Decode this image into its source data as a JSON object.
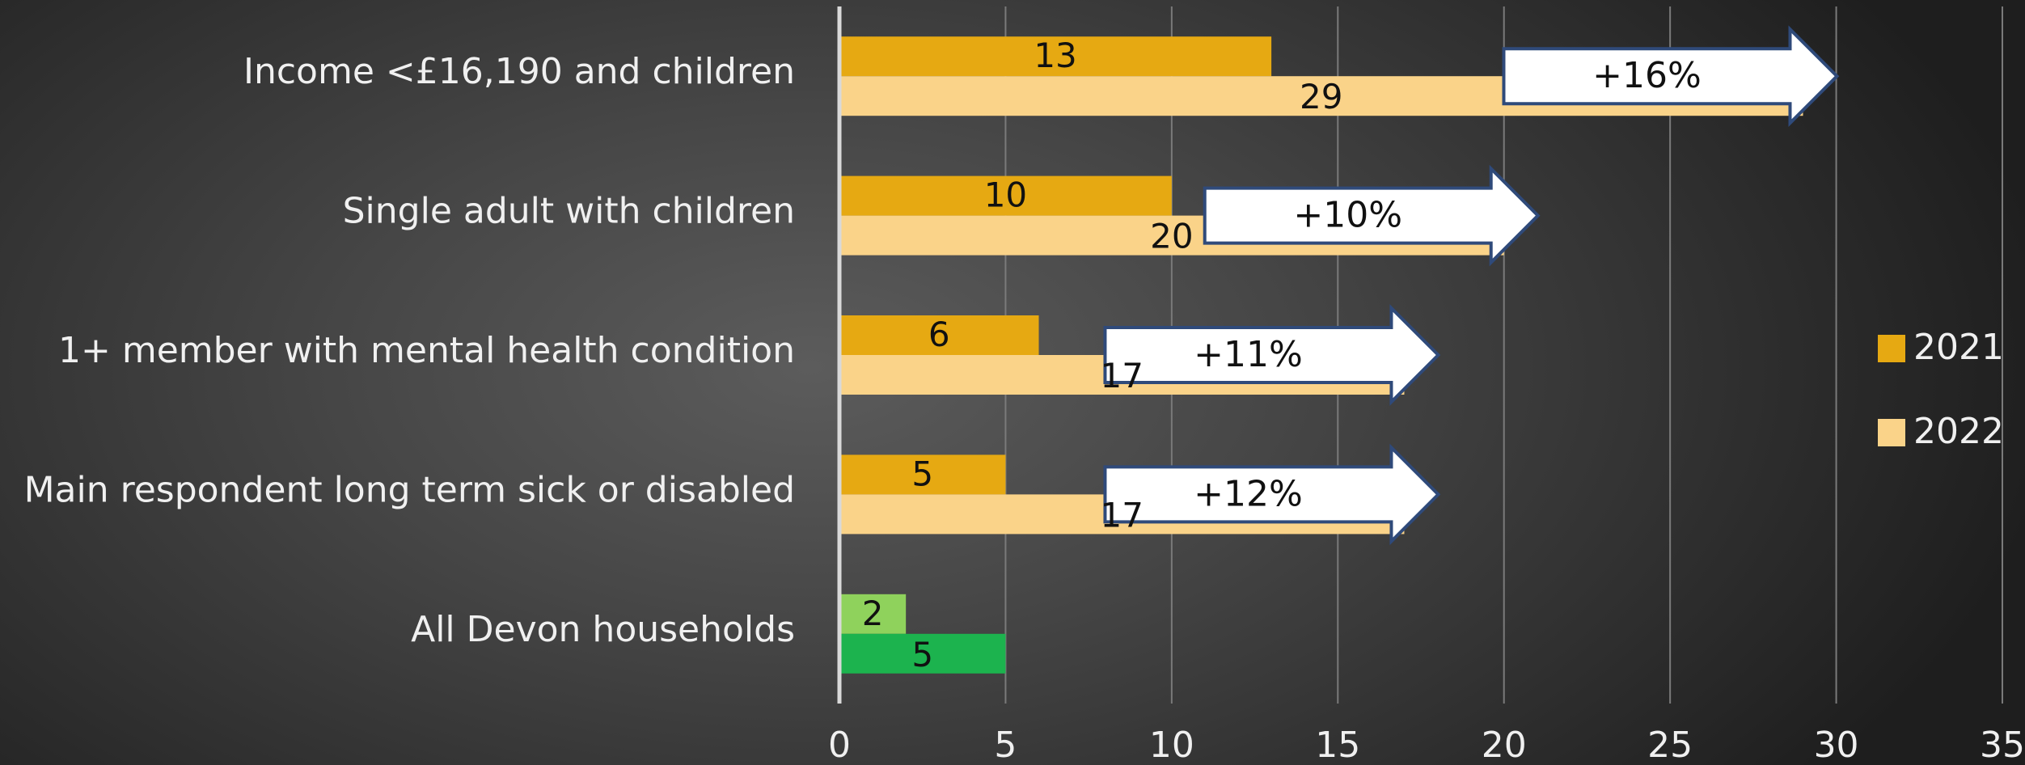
{
  "chart_data": {
    "type": "bar",
    "orientation": "horizontal",
    "categories": [
      "Income <£16,190 and children",
      "Single adult with children",
      "1+ member with mental health condition",
      "Main respondent long term sick or disabled",
      "All Devon households"
    ],
    "series": [
      {
        "name": "2021",
        "values": [
          13,
          10,
          6,
          5,
          2
        ]
      },
      {
        "name": "2022",
        "values": [
          29,
          20,
          17,
          17,
          5
        ]
      }
    ],
    "changes": [
      "+16%",
      "+10%",
      "+11%",
      "+12%",
      null
    ],
    "xlim": [
      0,
      35
    ],
    "xticks": [
      0,
      5,
      10,
      15,
      20,
      25,
      30,
      35
    ],
    "grid": true,
    "legend_position": "right",
    "colors": {
      "2021": "#E6A912",
      "2022": "#FAD389",
      "highlight_2021": "#8FD25C",
      "highlight_2022": "#1CB34E",
      "arrow_fill": "#FFFFFF",
      "arrow_border": "#2F4A7A",
      "gridline": "#7A7A7A",
      "axis": "#D9D9D9"
    },
    "highlight_category_index": 4
  }
}
